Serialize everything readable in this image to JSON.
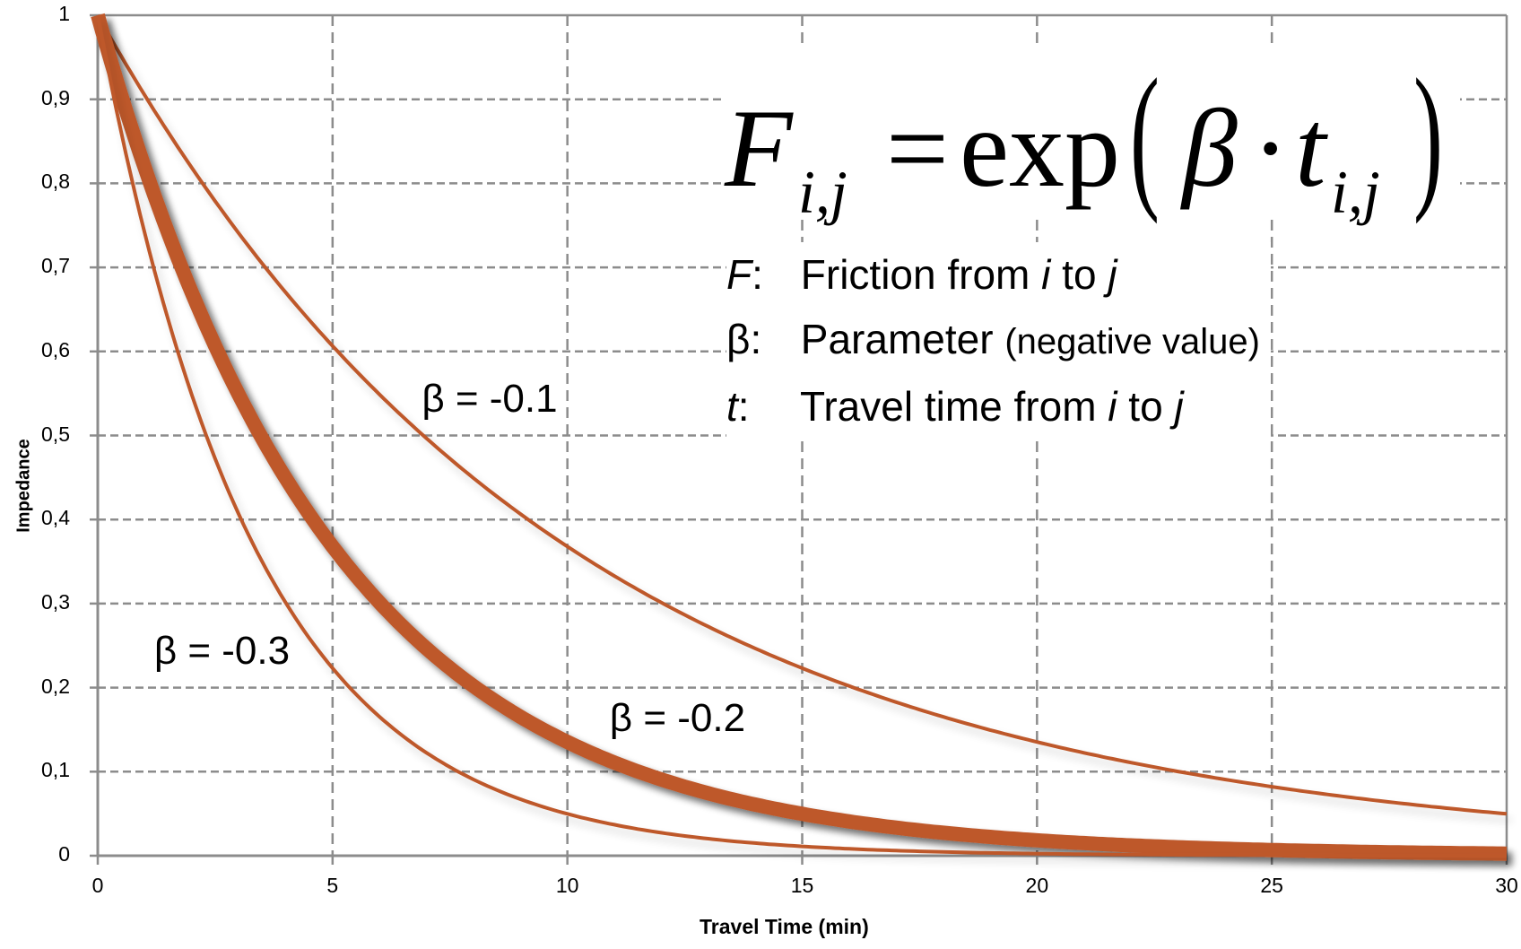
{
  "chart_data": {
    "type": "line",
    "title": "",
    "xlabel": "Travel Time (min)",
    "ylabel": "Impedance",
    "xlim": [
      0,
      30
    ],
    "ylim": [
      0,
      1
    ],
    "grid": true,
    "grid_style": "dashed",
    "x_ticks": [
      "0",
      "5",
      "10",
      "15",
      "20",
      "25",
      "30"
    ],
    "y_ticks": [
      "0",
      "0,1",
      "0,2",
      "0,3",
      "0,4",
      "0,5",
      "0,6",
      "0,7",
      "0,8",
      "0,9",
      "1"
    ],
    "x": [
      0,
      1,
      2,
      3,
      4,
      5,
      6,
      7,
      8,
      9,
      10,
      11,
      12,
      13,
      14,
      15,
      16,
      17,
      18,
      19,
      20,
      21,
      22,
      23,
      24,
      25,
      26,
      27,
      28,
      29,
      30
    ],
    "series": [
      {
        "name": "β = -0.1",
        "beta": -0.1,
        "line_width": 4,
        "highlight": false,
        "values": [
          1.0,
          0.905,
          0.819,
          0.741,
          0.67,
          0.607,
          0.549,
          0.497,
          0.449,
          0.407,
          0.368,
          0.333,
          0.301,
          0.273,
          0.247,
          0.223,
          0.202,
          0.183,
          0.165,
          0.15,
          0.135,
          0.122,
          0.111,
          0.1,
          0.091,
          0.082,
          0.074,
          0.067,
          0.061,
          0.055,
          0.05
        ]
      },
      {
        "name": "β = -0.2",
        "beta": -0.2,
        "line_width": 16,
        "highlight": true,
        "values": [
          1.0,
          0.819,
          0.67,
          0.549,
          0.449,
          0.368,
          0.301,
          0.247,
          0.202,
          0.165,
          0.135,
          0.111,
          0.091,
          0.074,
          0.061,
          0.05,
          0.041,
          0.033,
          0.027,
          0.022,
          0.018,
          0.015,
          0.012,
          0.01,
          0.008,
          0.007,
          0.006,
          0.005,
          0.004,
          0.003,
          0.002
        ]
      },
      {
        "name": "β = -0.3",
        "beta": -0.3,
        "line_width": 4,
        "highlight": false,
        "values": [
          1.0,
          0.741,
          0.549,
          0.407,
          0.301,
          0.223,
          0.165,
          0.122,
          0.091,
          0.067,
          0.05,
          0.037,
          0.027,
          0.02,
          0.015,
          0.011,
          0.008,
          0.006,
          0.005,
          0.003,
          0.002,
          0.002,
          0.001,
          0.001,
          0.001,
          0.001,
          0.0,
          0.0,
          0.0,
          0.0,
          0.0
        ]
      }
    ],
    "annotations": [
      {
        "text": "β = -0.1",
        "x": 6.9,
        "y": 0.54
      },
      {
        "text": "β = -0.2",
        "x": 10.9,
        "y": 0.16
      },
      {
        "text": "β = -0.3",
        "x": 1.2,
        "y": 0.24
      }
    ],
    "colors": {
      "curve": "#BE582C",
      "grid": "#8C8C8C",
      "axis": "#8C8C8C",
      "background": "#FFFFFF"
    }
  },
  "formula": {
    "lhs": "F",
    "lhs_sub": "i,j",
    "equals": "=",
    "func": "exp",
    "beta": "β",
    "dot": "·",
    "var": "t",
    "var_sub": "i,j"
  },
  "legend": [
    {
      "key": "F",
      "key_italic": true,
      "text_parts": [
        "Friction from ",
        "i",
        " to ",
        "j"
      ]
    },
    {
      "key": "β",
      "key_italic": false,
      "text": "Parameter",
      "note": "(negative value)"
    },
    {
      "key": "t",
      "key_italic": true,
      "text_parts": [
        "Travel time from ",
        "i",
        " to ",
        "j"
      ]
    }
  ]
}
